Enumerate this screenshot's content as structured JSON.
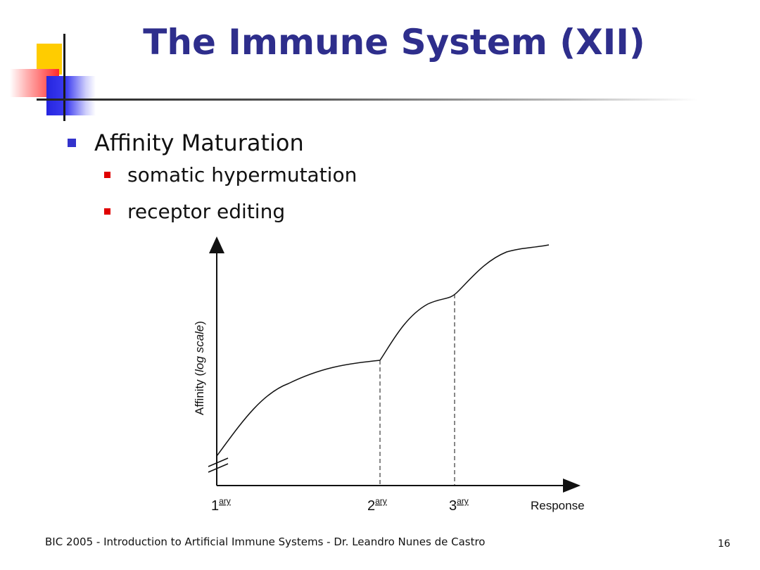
{
  "slide": {
    "title": "The Immune System (XII)",
    "bullets": [
      {
        "text": "Affinity Maturation",
        "level": 1
      },
      {
        "text": "somatic hypermutation",
        "level": 2
      },
      {
        "text": "receptor editing",
        "level": 2
      }
    ],
    "footer": "BIC 2005 - Introduction to Artificial Immune Systems - Dr. Leandro Nunes de Castro",
    "page_number": "16"
  },
  "diagram": {
    "y_axis_label_prefix": "Affinity (",
    "y_axis_label_italic": "log scale",
    "y_axis_label_suffix": ")",
    "x_axis_label": "Response",
    "markers": [
      {
        "num": "1",
        "sup": "ary"
      },
      {
        "num": "2",
        "sup": "ary"
      },
      {
        "num": "3",
        "sup": "ary"
      }
    ]
  },
  "colors": {
    "title": "#2e2e8c",
    "bullet_level1": "#3333cc",
    "bullet_level2": "#e00000",
    "accent_yellow": "#ffcc00",
    "accent_red": "#ff2a2a",
    "accent_blue": "#2525e0"
  }
}
